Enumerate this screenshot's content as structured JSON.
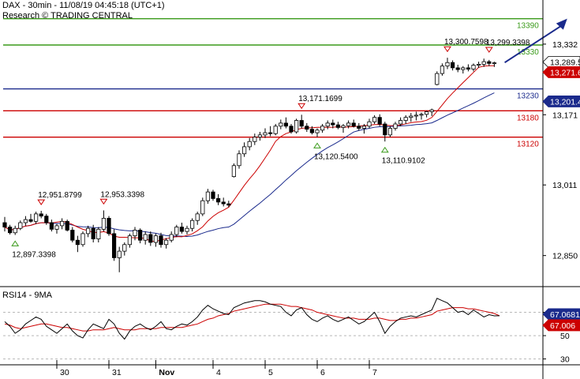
{
  "header": {
    "line1": "DAX - 30min - 11/08/19 04:45:18 (UTC+1)",
    "line2": "Research © TRADING CENTRAL"
  },
  "colors": {
    "candle": "#000000",
    "ma_fast": "#cc0000",
    "ma_slow": "#1a2a8c",
    "target_line": "#3a9a1a",
    "pivot_line": "#1a2a8c",
    "support_line": "#cc0000",
    "arrow": "#1a2a8c",
    "level_label_green": "#3a9a1a",
    "level_label_blue": "#1a2a8c",
    "level_label_red": "#cc0000",
    "rsi_line": "#000000",
    "rsi_ma": "#cc0000"
  },
  "chart_data": [
    {
      "type": "candlestick",
      "title": "DAX - 30min",
      "x_ticks": [
        "30",
        "31",
        "Nov",
        "4",
        "5",
        "6",
        "7"
      ],
      "y_ticks": [
        12850,
        13011,
        13171,
        13332
      ],
      "ylim": [
        12790,
        13420
      ],
      "levels": [
        {
          "value": 13390,
          "label": "13390",
          "role": "target"
        },
        {
          "value": 13330,
          "label": "13330",
          "role": "target"
        },
        {
          "value": 13230,
          "label": "13230",
          "role": "pivot"
        },
        {
          "value": 13180,
          "label": "13180",
          "role": "support"
        },
        {
          "value": 13120,
          "label": "13120",
          "role": "support"
        }
      ],
      "annotations": [
        {
          "label": "12,951.8799",
          "value": 12951.8799,
          "kind": "high",
          "bar": 7
        },
        {
          "label": "12,953.3398",
          "value": 12953.3398,
          "kind": "high",
          "bar": 19
        },
        {
          "label": "12,897.3398",
          "value": 12897.3398,
          "kind": "low",
          "bar": 2
        },
        {
          "label": "13,171.1699",
          "value": 13171.1699,
          "kind": "high",
          "bar": 57
        },
        {
          "label": "13,120.5400",
          "value": 13120.54,
          "kind": "low",
          "bar": 60
        },
        {
          "label": "13,110.9102",
          "value": 13110.9102,
          "kind": "low",
          "bar": 73
        },
        {
          "label": "13,300.7598",
          "value": 13300.7598,
          "kind": "high",
          "bar": 85
        },
        {
          "label": "13,299.3398",
          "value": 13299.3398,
          "kind": "high",
          "bar": 93
        }
      ],
      "price_tags": [
        {
          "label": "13,289.5",
          "value": 13289.5,
          "kind": "last"
        },
        {
          "label": "13,271.6",
          "value": 13271.6,
          "kind": "ma_fast"
        },
        {
          "label": "13,201.4",
          "value": 13201.4,
          "kind": "ma_slow"
        }
      ],
      "candles": [
        [
          12925,
          12938,
          12905,
          12915
        ],
        [
          12915,
          12920,
          12898,
          12902
        ],
        [
          12902,
          12918,
          12897,
          12912
        ],
        [
          12912,
          12930,
          12908,
          12925
        ],
        [
          12925,
          12940,
          12918,
          12932
        ],
        [
          12932,
          12945,
          12925,
          12928
        ],
        [
          12928,
          12950,
          12922,
          12945
        ],
        [
          12945,
          12952,
          12935,
          12940
        ],
        [
          12940,
          12945,
          12920,
          12925
        ],
        [
          12925,
          12932,
          12905,
          12910
        ],
        [
          12910,
          12922,
          12900,
          12918
        ],
        [
          12918,
          12935,
          12910,
          12928
        ],
        [
          12928,
          12932,
          12905,
          12908
        ],
        [
          12908,
          12915,
          12880,
          12885
        ],
        [
          12885,
          12895,
          12858,
          12875
        ],
        [
          12875,
          12905,
          12870,
          12900
        ],
        [
          12900,
          12918,
          12892,
          12912
        ],
        [
          12912,
          12920,
          12880,
          12888
        ],
        [
          12888,
          12915,
          12880,
          12910
        ],
        [
          12910,
          12953,
          12905,
          12935
        ],
        [
          12935,
          12940,
          12895,
          12900
        ],
        [
          12900,
          12910,
          12838,
          12845
        ],
        [
          12845,
          12870,
          12812,
          12860
        ],
        [
          12860,
          12880,
          12850,
          12875
        ],
        [
          12875,
          12900,
          12868,
          12895
        ],
        [
          12895,
          12915,
          12885,
          12908
        ],
        [
          12908,
          12912,
          12878,
          12885
        ],
        [
          12885,
          12905,
          12875,
          12898
        ],
        [
          12898,
          12905,
          12872,
          12880
        ],
        [
          12880,
          12900,
          12870,
          12895
        ],
        [
          12895,
          12902,
          12868,
          12875
        ],
        [
          12875,
          12890,
          12866,
          12885
        ],
        [
          12885,
          12905,
          12880,
          12898
        ],
        [
          12898,
          12920,
          12892,
          12915
        ],
        [
          12915,
          12925,
          12900,
          12905
        ],
        [
          12905,
          12918,
          12898,
          12912
        ],
        [
          12912,
          12935,
          12905,
          12930
        ],
        [
          12930,
          12950,
          12920,
          12945
        ],
        [
          12945,
          12982,
          12940,
          12975
        ],
        [
          12975,
          13002,
          12968,
          12995
        ],
        [
          12995,
          13000,
          12975,
          12980
        ],
        [
          12980,
          12990,
          12965,
          12972
        ],
        [
          12972,
          12982,
          12962,
          12968
        ],
        [
          12968,
          12975,
          12960,
          12965
        ],
        [
          13030,
          13060,
          13028,
          13055
        ],
        [
          13055,
          13090,
          13048,
          13082
        ],
        [
          13082,
          13108,
          13075,
          13098
        ],
        [
          13098,
          13118,
          13090,
          13110
        ],
        [
          13110,
          13128,
          13102,
          13120
        ],
        [
          13120,
          13132,
          13112,
          13125
        ],
        [
          13125,
          13140,
          13118,
          13130
        ],
        [
          13130,
          13145,
          13122,
          13128
        ],
        [
          13128,
          13150,
          13124,
          13145
        ],
        [
          13145,
          13160,
          13138,
          13152
        ],
        [
          13152,
          13165,
          13140,
          13145
        ],
        [
          13145,
          13150,
          13128,
          13132
        ],
        [
          13132,
          13162,
          13128,
          13158
        ],
        [
          13158,
          13171,
          13140,
          13145
        ],
        [
          13145,
          13152,
          13132,
          13138
        ],
        [
          13138,
          13145,
          13126,
          13130
        ],
        [
          13130,
          13140,
          13120,
          13136
        ],
        [
          13136,
          13150,
          13130,
          13145
        ],
        [
          13145,
          13158,
          13138,
          13152
        ],
        [
          13152,
          13160,
          13140,
          13148
        ],
        [
          13148,
          13155,
          13138,
          13142
        ],
        [
          13142,
          13150,
          13130,
          13146
        ],
        [
          13146,
          13158,
          13140,
          13152
        ],
        [
          13152,
          13160,
          13142,
          13145
        ],
        [
          13145,
          13152,
          13135,
          13140
        ],
        [
          13140,
          13150,
          13128,
          13145
        ],
        [
          13145,
          13162,
          13140,
          13155
        ],
        [
          13155,
          13170,
          13150,
          13165
        ],
        [
          13165,
          13172,
          13145,
          13150
        ],
        [
          13150,
          13155,
          13110,
          13125
        ],
        [
          13125,
          13145,
          13120,
          13140
        ],
        [
          13140,
          13155,
          13135,
          13150
        ],
        [
          13150,
          13165,
          13145,
          13158
        ],
        [
          13158,
          13170,
          13150,
          13165
        ],
        [
          13165,
          13175,
          13155,
          13168
        ],
        [
          13168,
          13178,
          13158,
          13170
        ],
        [
          13170,
          13176,
          13160,
          13172
        ],
        [
          13172,
          13180,
          13165,
          13178
        ],
        [
          13178,
          13185,
          13168,
          13182
        ],
        [
          13240,
          13270,
          13238,
          13265
        ],
        [
          13265,
          13288,
          13260,
          13282
        ],
        [
          13282,
          13301,
          13275,
          13290
        ],
        [
          13290,
          13295,
          13272,
          13278
        ],
        [
          13278,
          13285,
          13268,
          13274
        ],
        [
          13274,
          13282,
          13265,
          13278
        ],
        [
          13278,
          13286,
          13270,
          13275
        ],
        [
          13275,
          13288,
          13270,
          13284
        ],
        [
          13284,
          13292,
          13278,
          13286
        ],
        [
          13286,
          13299,
          13280,
          13292
        ],
        [
          13292,
          13296,
          13282,
          13288
        ],
        [
          13288,
          13292,
          13280,
          13289.5
        ]
      ],
      "forecast_arrow": {
        "from_bar": 96,
        "from_value": 13290,
        "to_bar": 108,
        "to_value": 13390
      }
    },
    {
      "type": "line",
      "title": "RSI14 - 9MA",
      "y_ticks": [
        30,
        50,
        70
      ],
      "ylim": [
        25,
        90
      ],
      "price_tags": [
        {
          "label": "67.0681",
          "value": 67.0681,
          "kind": "rsi"
        },
        {
          "label": "67.006",
          "value": 67.006,
          "kind": "rsi_ma"
        }
      ],
      "series": [
        {
          "name": "RSI14",
          "values": [
            62,
            58,
            52,
            55,
            60,
            63,
            66,
            64,
            58,
            55,
            52,
            56,
            60,
            54,
            50,
            48,
            55,
            60,
            58,
            56,
            64,
            60,
            52,
            47,
            54,
            58,
            60,
            57,
            55,
            58,
            62,
            56,
            55,
            58,
            60,
            59,
            62,
            66,
            72,
            76,
            73,
            71,
            69,
            68,
            74,
            76,
            78,
            79,
            80,
            80,
            79,
            77,
            76,
            75,
            70,
            67,
            72,
            74,
            68,
            64,
            62,
            65,
            67,
            64,
            62,
            64,
            66,
            63,
            60,
            62,
            66,
            70,
            62,
            52,
            58,
            62,
            65,
            66,
            67,
            66,
            68,
            70,
            72,
            82,
            80,
            78,
            74,
            70,
            71,
            68,
            72,
            69,
            66,
            68,
            67,
            67.0681
          ]
        },
        {
          "name": "9MA",
          "values": [
            60,
            59,
            57,
            56,
            57,
            58,
            59,
            60,
            60,
            59,
            58,
            57,
            57,
            56,
            55,
            54,
            54,
            55,
            55,
            55,
            56,
            57,
            56,
            55,
            55,
            55,
            56,
            56,
            56,
            56,
            57,
            57,
            57,
            57,
            57,
            58,
            59,
            60,
            62,
            64,
            65,
            67,
            68,
            69,
            71,
            72,
            73,
            74,
            75,
            76,
            77,
            77,
            77,
            77,
            76,
            75,
            75,
            74,
            73,
            72,
            70,
            69,
            68,
            67,
            66,
            65,
            65,
            65,
            64,
            64,
            64,
            65,
            65,
            64,
            63,
            63,
            64,
            64,
            65,
            65,
            66,
            67,
            68,
            71,
            72,
            73,
            74,
            74,
            74,
            73,
            73,
            72,
            71,
            70,
            69,
            67.006
          ]
        }
      ]
    }
  ]
}
